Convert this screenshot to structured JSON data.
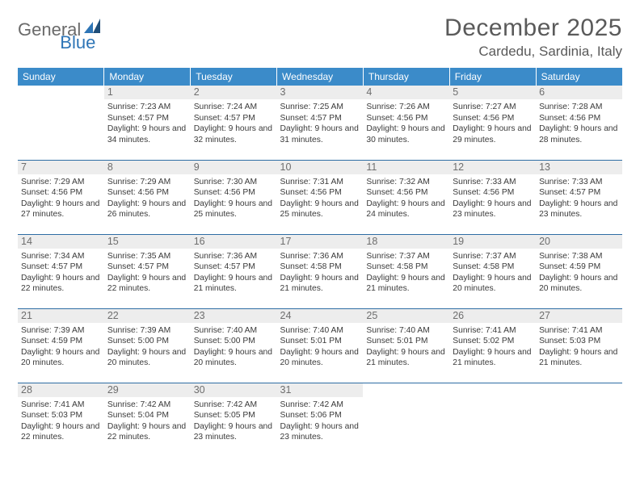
{
  "logo": {
    "part1": "General",
    "part2": "Blue"
  },
  "title": "December 2025",
  "location": "Cardedu, Sardinia, Italy",
  "colors": {
    "header_bg": "#3b8bc9",
    "header_text": "#ffffff",
    "row_border": "#2e6da4",
    "daynum_bg": "#ededed",
    "daynum_text": "#6e6e6e",
    "body_text": "#3a3a3a",
    "logo_gray": "#6a6a6a",
    "logo_blue": "#2e75b6"
  },
  "weekdays": [
    "Sunday",
    "Monday",
    "Tuesday",
    "Wednesday",
    "Thursday",
    "Friday",
    "Saturday"
  ],
  "weeks": [
    [
      {
        "day": "",
        "sunrise": "",
        "sunset": "",
        "daylight": ""
      },
      {
        "day": "1",
        "sunrise": "7:23 AM",
        "sunset": "4:57 PM",
        "daylight": "9 hours and 34 minutes."
      },
      {
        "day": "2",
        "sunrise": "7:24 AM",
        "sunset": "4:57 PM",
        "daylight": "9 hours and 32 minutes."
      },
      {
        "day": "3",
        "sunrise": "7:25 AM",
        "sunset": "4:57 PM",
        "daylight": "9 hours and 31 minutes."
      },
      {
        "day": "4",
        "sunrise": "7:26 AM",
        "sunset": "4:56 PM",
        "daylight": "9 hours and 30 minutes."
      },
      {
        "day": "5",
        "sunrise": "7:27 AM",
        "sunset": "4:56 PM",
        "daylight": "9 hours and 29 minutes."
      },
      {
        "day": "6",
        "sunrise": "7:28 AM",
        "sunset": "4:56 PM",
        "daylight": "9 hours and 28 minutes."
      }
    ],
    [
      {
        "day": "7",
        "sunrise": "7:29 AM",
        "sunset": "4:56 PM",
        "daylight": "9 hours and 27 minutes."
      },
      {
        "day": "8",
        "sunrise": "7:29 AM",
        "sunset": "4:56 PM",
        "daylight": "9 hours and 26 minutes."
      },
      {
        "day": "9",
        "sunrise": "7:30 AM",
        "sunset": "4:56 PM",
        "daylight": "9 hours and 25 minutes."
      },
      {
        "day": "10",
        "sunrise": "7:31 AM",
        "sunset": "4:56 PM",
        "daylight": "9 hours and 25 minutes."
      },
      {
        "day": "11",
        "sunrise": "7:32 AM",
        "sunset": "4:56 PM",
        "daylight": "9 hours and 24 minutes."
      },
      {
        "day": "12",
        "sunrise": "7:33 AM",
        "sunset": "4:56 PM",
        "daylight": "9 hours and 23 minutes."
      },
      {
        "day": "13",
        "sunrise": "7:33 AM",
        "sunset": "4:57 PM",
        "daylight": "9 hours and 23 minutes."
      }
    ],
    [
      {
        "day": "14",
        "sunrise": "7:34 AM",
        "sunset": "4:57 PM",
        "daylight": "9 hours and 22 minutes."
      },
      {
        "day": "15",
        "sunrise": "7:35 AM",
        "sunset": "4:57 PM",
        "daylight": "9 hours and 22 minutes."
      },
      {
        "day": "16",
        "sunrise": "7:36 AM",
        "sunset": "4:57 PM",
        "daylight": "9 hours and 21 minutes."
      },
      {
        "day": "17",
        "sunrise": "7:36 AM",
        "sunset": "4:58 PM",
        "daylight": "9 hours and 21 minutes."
      },
      {
        "day": "18",
        "sunrise": "7:37 AM",
        "sunset": "4:58 PM",
        "daylight": "9 hours and 21 minutes."
      },
      {
        "day": "19",
        "sunrise": "7:37 AM",
        "sunset": "4:58 PM",
        "daylight": "9 hours and 20 minutes."
      },
      {
        "day": "20",
        "sunrise": "7:38 AM",
        "sunset": "4:59 PM",
        "daylight": "9 hours and 20 minutes."
      }
    ],
    [
      {
        "day": "21",
        "sunrise": "7:39 AM",
        "sunset": "4:59 PM",
        "daylight": "9 hours and 20 minutes."
      },
      {
        "day": "22",
        "sunrise": "7:39 AM",
        "sunset": "5:00 PM",
        "daylight": "9 hours and 20 minutes."
      },
      {
        "day": "23",
        "sunrise": "7:40 AM",
        "sunset": "5:00 PM",
        "daylight": "9 hours and 20 minutes."
      },
      {
        "day": "24",
        "sunrise": "7:40 AM",
        "sunset": "5:01 PM",
        "daylight": "9 hours and 20 minutes."
      },
      {
        "day": "25",
        "sunrise": "7:40 AM",
        "sunset": "5:01 PM",
        "daylight": "9 hours and 21 minutes."
      },
      {
        "day": "26",
        "sunrise": "7:41 AM",
        "sunset": "5:02 PM",
        "daylight": "9 hours and 21 minutes."
      },
      {
        "day": "27",
        "sunrise": "7:41 AM",
        "sunset": "5:03 PM",
        "daylight": "9 hours and 21 minutes."
      }
    ],
    [
      {
        "day": "28",
        "sunrise": "7:41 AM",
        "sunset": "5:03 PM",
        "daylight": "9 hours and 22 minutes."
      },
      {
        "day": "29",
        "sunrise": "7:42 AM",
        "sunset": "5:04 PM",
        "daylight": "9 hours and 22 minutes."
      },
      {
        "day": "30",
        "sunrise": "7:42 AM",
        "sunset": "5:05 PM",
        "daylight": "9 hours and 23 minutes."
      },
      {
        "day": "31",
        "sunrise": "7:42 AM",
        "sunset": "5:06 PM",
        "daylight": "9 hours and 23 minutes."
      },
      {
        "day": "",
        "sunrise": "",
        "sunset": "",
        "daylight": ""
      },
      {
        "day": "",
        "sunrise": "",
        "sunset": "",
        "daylight": ""
      },
      {
        "day": "",
        "sunrise": "",
        "sunset": "",
        "daylight": ""
      }
    ]
  ],
  "labels": {
    "sunrise": "Sunrise:",
    "sunset": "Sunset:",
    "daylight": "Daylight:"
  }
}
